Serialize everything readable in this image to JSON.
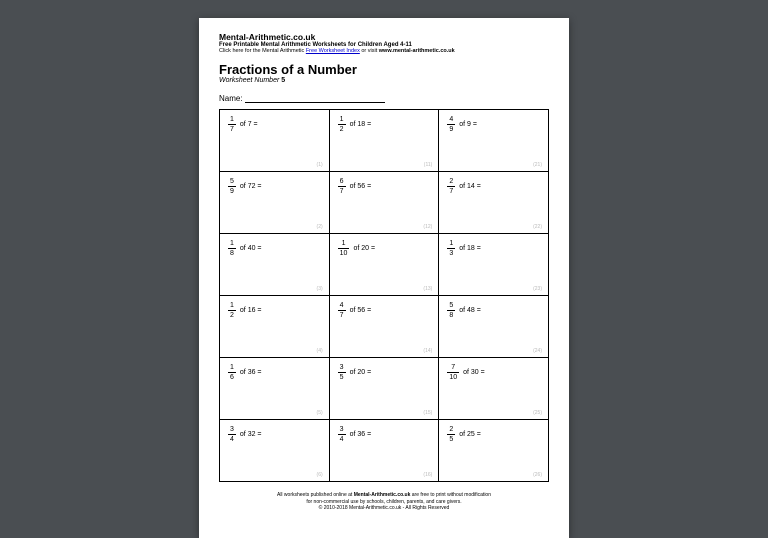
{
  "background_color": "#4a4e52",
  "page_color": "#ffffff",
  "header": {
    "site_name": "Mental-Arithmetic.co.uk",
    "tagline": "Free Printable Mental Arithmetic Worksheets for Children Aged 4-11",
    "link_prefix": "Click here for the Mental Arithmetic ",
    "link_text": "Free Worksheet Index",
    "link_middle": " or visit ",
    "link_url": "www.mental-arithmetic.co.uk"
  },
  "title": "Fractions of a Number",
  "subtitle_prefix": "Worksheet Number ",
  "worksheet_number": "5",
  "name_label": "Name:",
  "problems": [
    [
      {
        "n": "1",
        "d": "7",
        "of": "7",
        "idx": "(1)"
      },
      {
        "n": "1",
        "d": "2",
        "of": "18",
        "idx": "(11)"
      },
      {
        "n": "4",
        "d": "9",
        "of": "9",
        "idx": "(21)"
      }
    ],
    [
      {
        "n": "5",
        "d": "9",
        "of": "72",
        "idx": "(2)"
      },
      {
        "n": "6",
        "d": "7",
        "of": "56",
        "idx": "(12)"
      },
      {
        "n": "2",
        "d": "7",
        "of": "14",
        "idx": "(22)"
      }
    ],
    [
      {
        "n": "1",
        "d": "8",
        "of": "40",
        "idx": "(3)"
      },
      {
        "n": "1",
        "d": "10",
        "of": "20",
        "idx": "(13)"
      },
      {
        "n": "1",
        "d": "3",
        "of": "18",
        "idx": "(23)"
      }
    ],
    [
      {
        "n": "1",
        "d": "2",
        "of": "16",
        "idx": "(4)"
      },
      {
        "n": "4",
        "d": "7",
        "of": "56",
        "idx": "(14)"
      },
      {
        "n": "5",
        "d": "8",
        "of": "48",
        "idx": "(24)"
      }
    ],
    [
      {
        "n": "1",
        "d": "6",
        "of": "36",
        "idx": "(5)"
      },
      {
        "n": "3",
        "d": "5",
        "of": "20",
        "idx": "(15)"
      },
      {
        "n": "7",
        "d": "10",
        "of": "30",
        "idx": "(25)"
      }
    ],
    [
      {
        "n": "3",
        "d": "4",
        "of": "32",
        "idx": "(6)"
      },
      {
        "n": "3",
        "d": "4",
        "of": "36",
        "idx": "(16)"
      },
      {
        "n": "2",
        "d": "5",
        "of": "25",
        "idx": "(26)"
      }
    ]
  ],
  "footer": {
    "line1a": "All worksheets published online at ",
    "line1b": "Mental-Arithmetic.co.uk",
    "line1c": " are free to print without modification",
    "line2": "for non-commercial use by schools, children, parents, and care givers.",
    "line3": "© 2010-2018 Mental-Arithmetic.co.uk - All Rights Reserved"
  }
}
